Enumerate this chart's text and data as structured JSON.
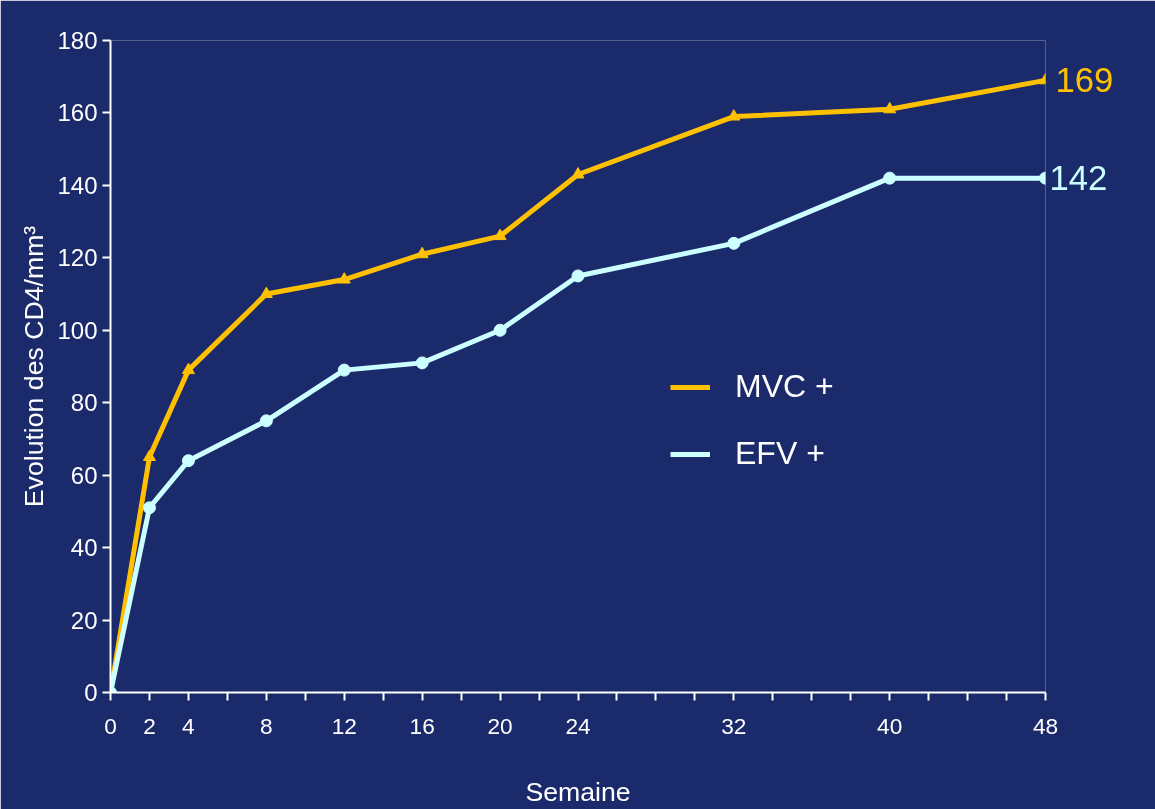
{
  "chart_data": {
    "type": "line",
    "xlabel": "Semaine",
    "ylabel": "Evolution des CD4/mm³",
    "x": [
      0,
      2,
      4,
      8,
      12,
      16,
      20,
      24,
      32,
      40,
      48
    ],
    "series": [
      {
        "name": "MVC +",
        "color": "#ffc000",
        "marker": "triangle",
        "values": [
          0,
          65,
          89,
          110,
          114,
          121,
          126,
          143,
          159,
          161,
          169
        ],
        "value_labels": [
          null,
          null,
          null,
          null,
          null,
          null,
          null,
          null,
          null,
          null,
          "169"
        ]
      },
      {
        "name": "EFV +",
        "color": "#ccffff",
        "marker": "circle",
        "values": [
          0,
          51,
          64,
          75,
          89,
          91,
          100,
          115,
          124,
          142,
          142
        ],
        "value_labels": [
          null,
          null,
          null,
          null,
          null,
          null,
          null,
          null,
          null,
          null,
          "142"
        ]
      }
    ],
    "xlim": [
      0,
      48
    ],
    "ylim": [
      0,
      180
    ],
    "xticks": [
      0,
      2,
      4,
      {
        "value": 6,
        "label": null
      },
      8,
      {
        "value": 10,
        "label": null
      },
      12,
      {
        "value": 14,
        "label": null
      },
      16,
      {
        "value": 18,
        "label": null
      },
      20,
      {
        "value": 22,
        "label": null
      },
      24,
      {
        "value": 26,
        "label": null
      },
      {
        "value": 28,
        "label": null
      },
      {
        "value": 30,
        "label": null
      },
      32,
      {
        "value": 34,
        "label": null
      },
      {
        "value": 36,
        "label": null
      },
      {
        "value": 38,
        "label": null
      },
      40,
      {
        "value": 42,
        "label": null
      },
      {
        "value": 44,
        "label": null
      },
      {
        "value": 46,
        "label": null
      },
      48
    ],
    "yticks": [
      0,
      20,
      40,
      60,
      80,
      100,
      120,
      140,
      160,
      180
    ],
    "grid": false,
    "legend": "right",
    "line_style": "solid"
  }
}
